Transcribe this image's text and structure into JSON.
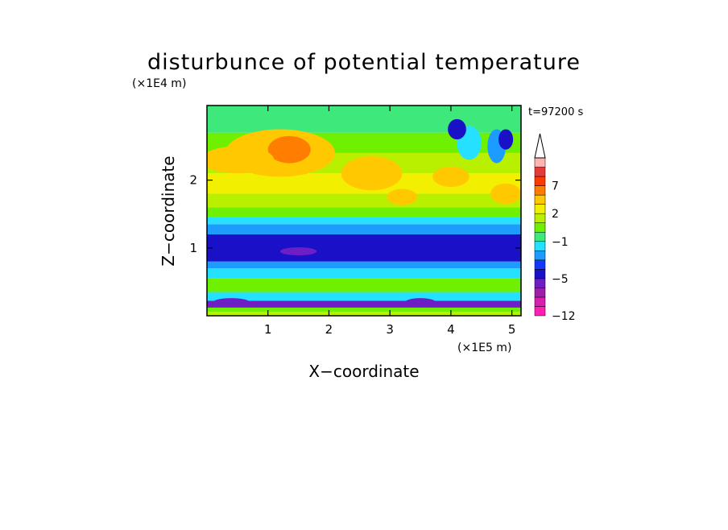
{
  "chart_data": {
    "type": "heatmap",
    "title": "disturbunce of potential temperature",
    "time_label": "t=97200 s",
    "xlabel": "X−coordinate",
    "ylabel": "Z−coordinate",
    "x_unit": "(×1E5 m)",
    "y_unit": "(×1E4 m)",
    "xlim": [
      0,
      5.15
    ],
    "ylim": [
      0,
      3.1
    ],
    "x_ticks": [
      1,
      2,
      3,
      4,
      5
    ],
    "y_ticks": [
      1,
      2
    ],
    "x_tick_labels": [
      "1",
      "2",
      "3",
      "4",
      "5"
    ],
    "y_tick_labels": [
      "1",
      "2"
    ],
    "colorbar": {
      "levels": [
        -12,
        -11,
        -9,
        -7,
        -5,
        -4,
        -3,
        -2,
        -1,
        0,
        1,
        2,
        3,
        5,
        7,
        8,
        9
      ],
      "colors": [
        "#ff1fb5",
        "#d81fb0",
        "#a01ea8",
        "#6e1ec4",
        "#1a10c8",
        "#1437ff",
        "#1d9cff",
        "#25e0ff",
        "#3ee87a",
        "#6ef000",
        "#b8f000",
        "#f2f000",
        "#ffc800",
        "#ff7d00",
        "#ff3a00",
        "#e33a3a",
        "#ffb4b4"
      ],
      "overflow_color": "#ffffff",
      "tick_labels": [
        "7",
        "2",
        "−1",
        "−5",
        "−12"
      ],
      "tick_values": [
        7,
        2,
        -1,
        -5,
        -12
      ]
    },
    "bands": [
      {
        "z_from": 0.0,
        "z_to": 0.06,
        "value": 1.5
      },
      {
        "z_from": 0.06,
        "z_to": 0.12,
        "value": 0.5
      },
      {
        "z_from": 0.12,
        "z_to": 0.22,
        "value": -5.5
      },
      {
        "z_from": 0.22,
        "z_to": 0.35,
        "value": -1.5
      },
      {
        "z_from": 0.35,
        "z_to": 0.55,
        "value": 0.5
      },
      {
        "z_from": 0.55,
        "z_to": 0.7,
        "value": -1.5
      },
      {
        "z_from": 0.7,
        "z_to": 0.8,
        "value": -2.5
      },
      {
        "z_from": 0.8,
        "z_to": 1.2,
        "value": -4.5
      },
      {
        "z_from": 1.2,
        "z_to": 1.35,
        "value": -2.5
      },
      {
        "z_from": 1.35,
        "z_to": 1.45,
        "value": -1.5
      },
      {
        "z_from": 1.45,
        "z_to": 1.6,
        "value": 0.5
      },
      {
        "z_from": 1.6,
        "z_to": 1.8,
        "value": 1.5
      },
      {
        "z_from": 1.8,
        "z_to": 2.1,
        "value": 2.5
      },
      {
        "z_from": 2.1,
        "z_to": 2.4,
        "value": 1.5
      },
      {
        "z_from": 2.4,
        "z_to": 2.7,
        "value": 0.5
      },
      {
        "z_from": 2.7,
        "z_to": 3.1,
        "value": -0.5
      }
    ],
    "features": [
      {
        "x": 1.2,
        "z": 2.4,
        "rx": 0.9,
        "rz": 0.35,
        "value": 4
      },
      {
        "x": 1.35,
        "z": 2.45,
        "rx": 0.35,
        "rz": 0.2,
        "value": 6
      },
      {
        "x": 0.5,
        "z": 2.3,
        "rx": 0.6,
        "rz": 0.2,
        "value": 3
      },
      {
        "x": 2.7,
        "z": 2.1,
        "rx": 0.5,
        "rz": 0.25,
        "value": 3
      },
      {
        "x": 4.0,
        "z": 2.05,
        "rx": 0.3,
        "rz": 0.15,
        "value": 4
      },
      {
        "x": 4.9,
        "z": 1.8,
        "rx": 0.25,
        "rz": 0.15,
        "value": 4
      },
      {
        "x": 3.2,
        "z": 1.75,
        "rx": 0.25,
        "rz": 0.12,
        "value": 3
      },
      {
        "x": 4.3,
        "z": 2.55,
        "rx": 0.2,
        "rz": 0.25,
        "value": -2
      },
      {
        "x": 4.75,
        "z": 2.5,
        "rx": 0.15,
        "rz": 0.25,
        "value": -3
      },
      {
        "x": 4.1,
        "z": 2.75,
        "rx": 0.15,
        "rz": 0.15,
        "value": -5
      },
      {
        "x": 4.9,
        "z": 2.6,
        "rx": 0.12,
        "rz": 0.15,
        "value": -5
      },
      {
        "x": 1.5,
        "z": 0.95,
        "rx": 0.3,
        "rz": 0.06,
        "value": -6
      },
      {
        "x": 0.4,
        "z": 0.2,
        "rx": 0.3,
        "rz": 0.06,
        "value": -6
      },
      {
        "x": 3.5,
        "z": 0.2,
        "rx": 0.25,
        "rz": 0.06,
        "value": -6
      }
    ]
  }
}
